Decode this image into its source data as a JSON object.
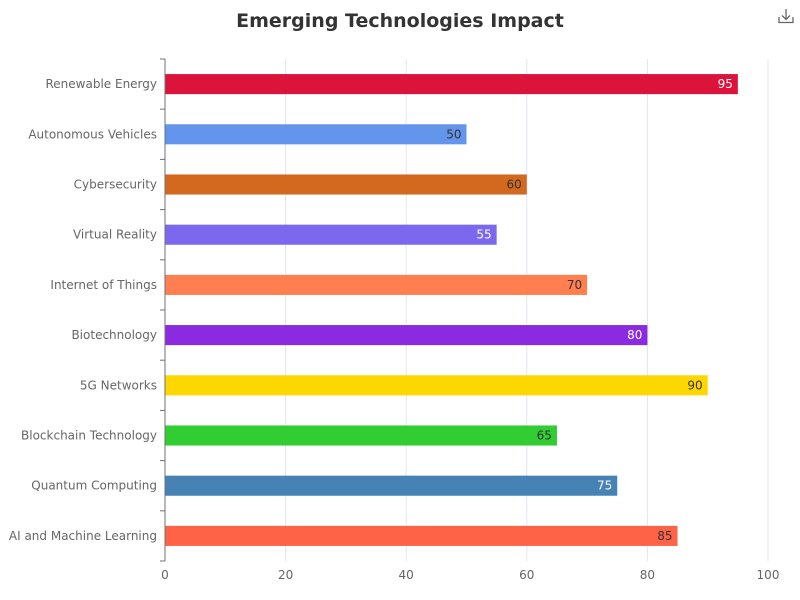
{
  "chart_data": {
    "type": "bar",
    "orientation": "horizontal",
    "title": "Emerging Technologies Impact",
    "categories": [
      "AI and Machine Learning",
      "Quantum Computing",
      "Blockchain Technology",
      "5G Networks",
      "Biotechnology",
      "Internet of Things",
      "Virtual Reality",
      "Cybersecurity",
      "Autonomous Vehicles",
      "Renewable Energy"
    ],
    "values": [
      85,
      75,
      65,
      90,
      80,
      70,
      55,
      60,
      50,
      95
    ],
    "colors": [
      "#ff6347",
      "#4682b4",
      "#32cd32",
      "#ffd700",
      "#8a2be2",
      "#ff7f50",
      "#7b68ee",
      "#d2691e",
      "#6495ed",
      "#dc143c"
    ],
    "label_colors": [
      "#333333",
      "#ffffff",
      "#333333",
      "#333333",
      "#ffffff",
      "#333333",
      "#ffffff",
      "#333333",
      "#333333",
      "#ffffff"
    ],
    "xlim": [
      0,
      100
    ],
    "xticks": [
      0,
      20,
      40,
      60,
      80,
      100
    ],
    "grid": true,
    "legend": "none"
  },
  "toolbar": {
    "download_icon": "download-icon"
  }
}
